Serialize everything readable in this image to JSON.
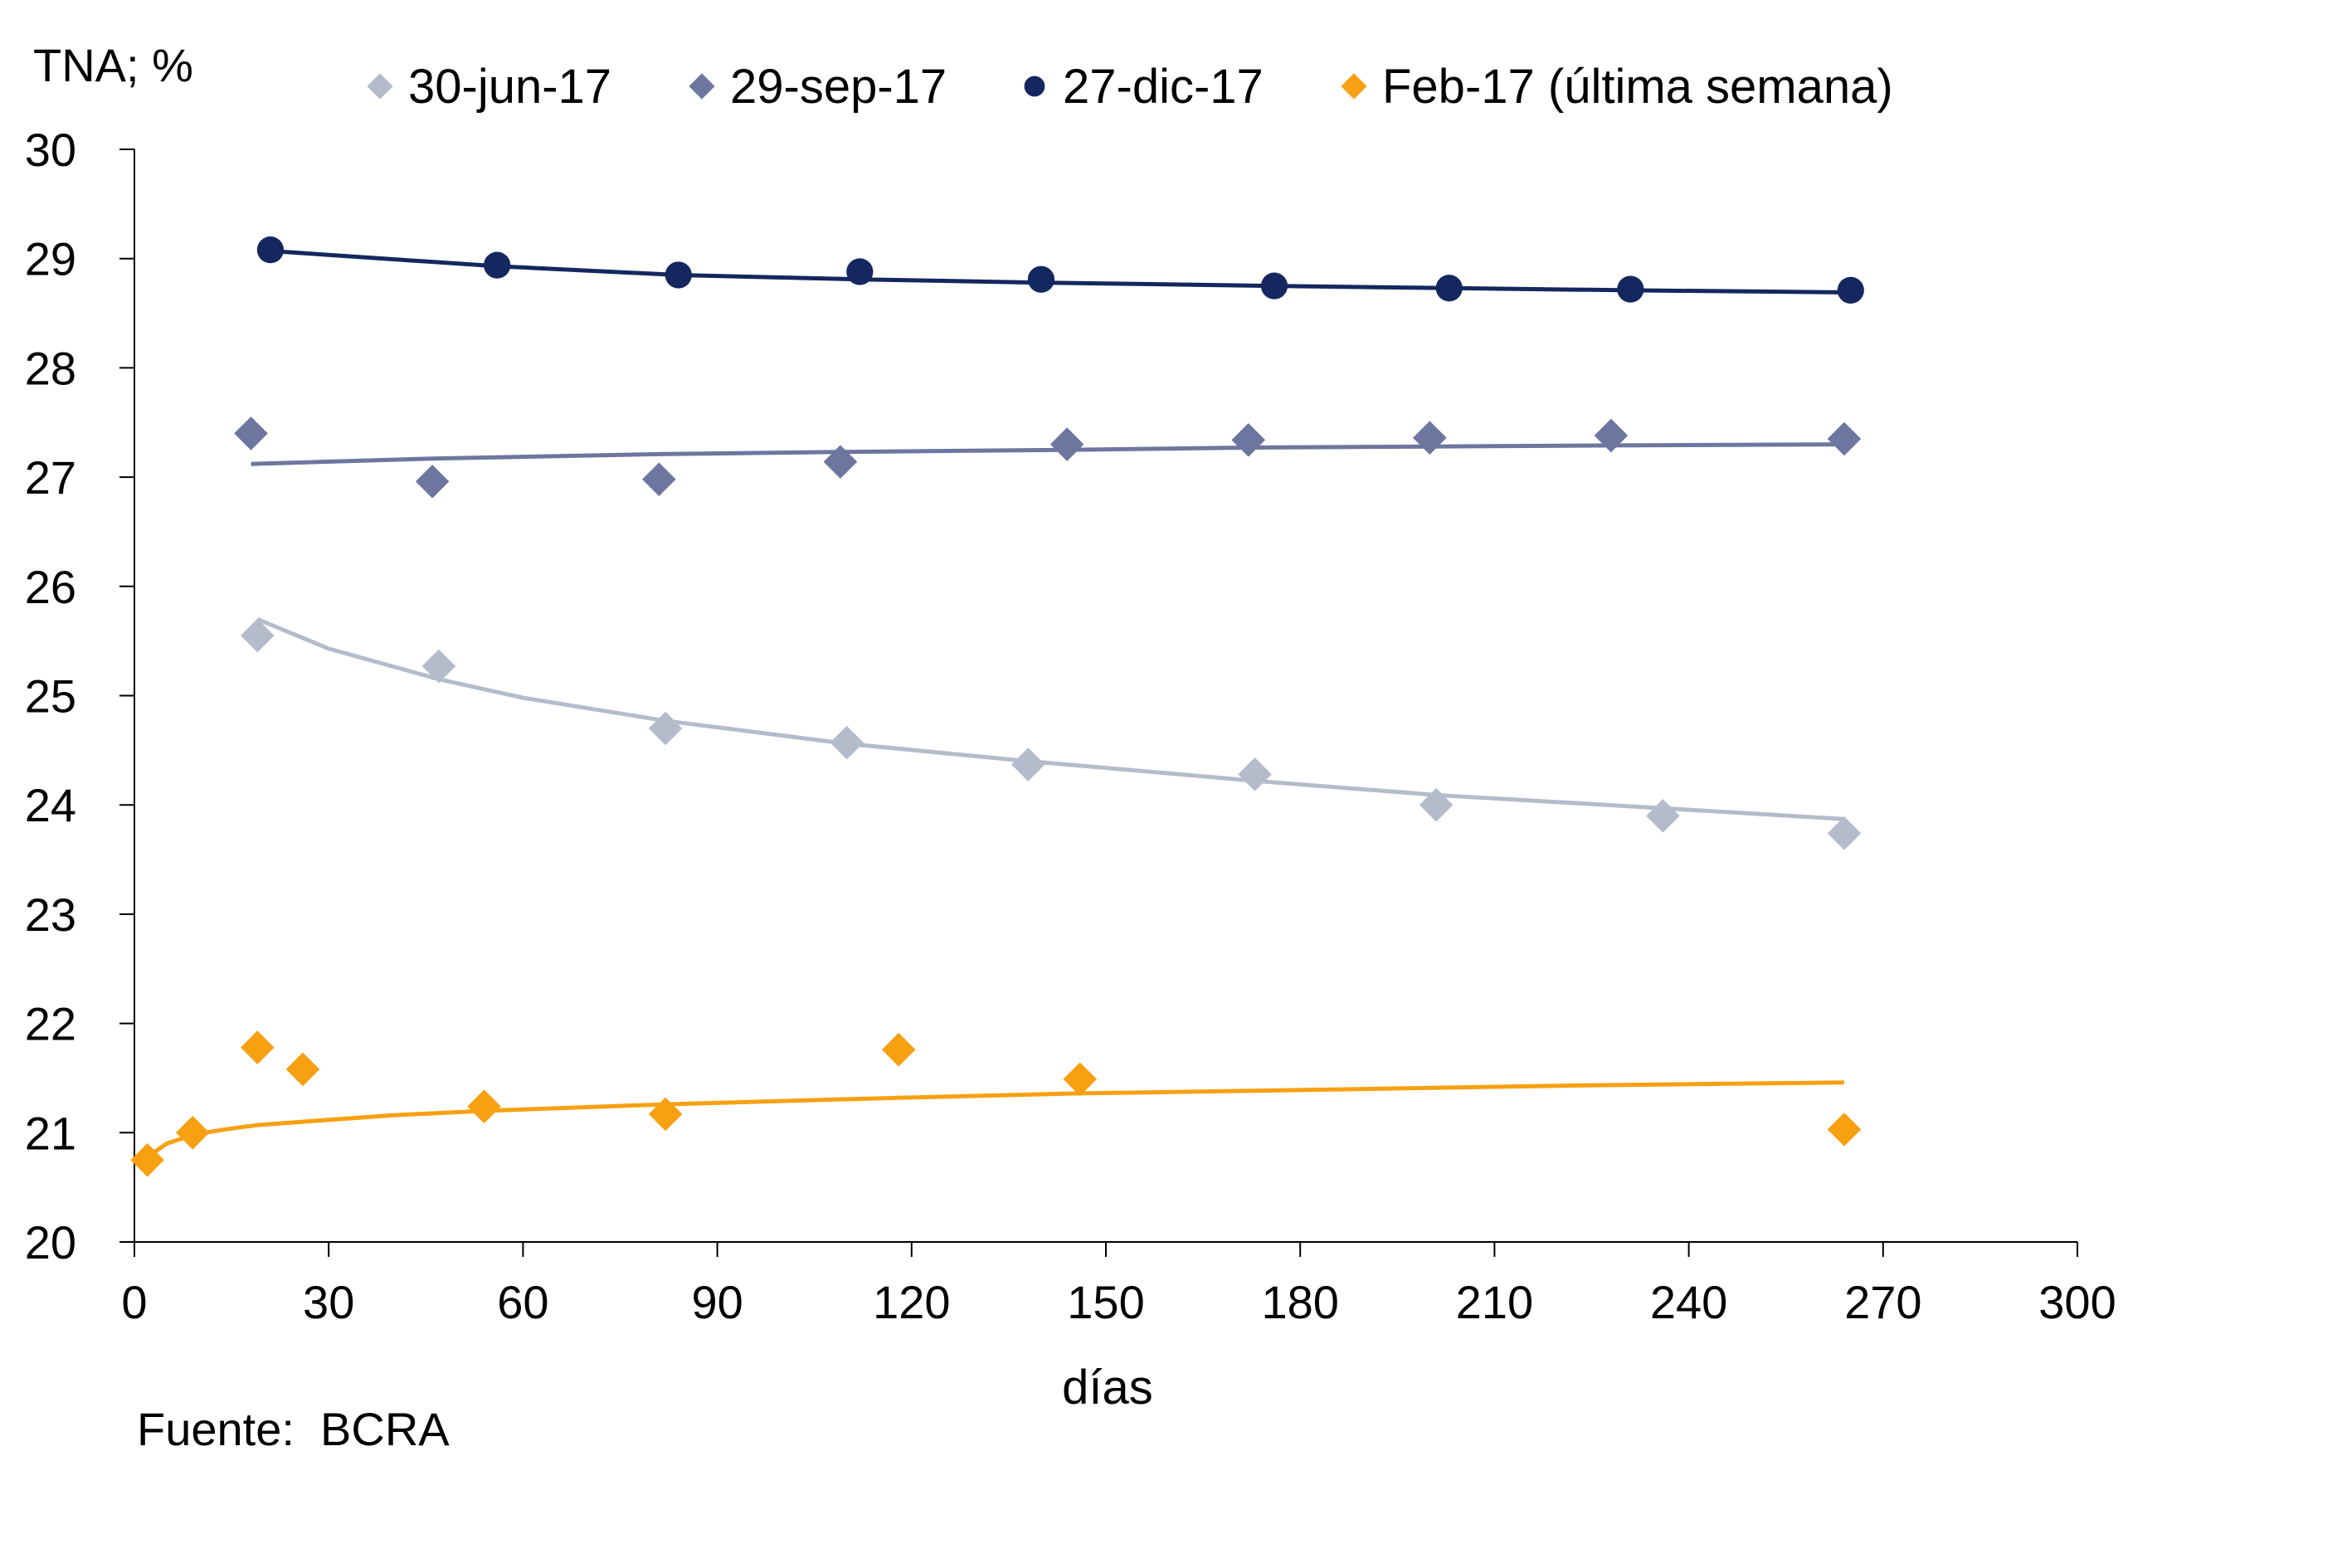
{
  "chart_data": {
    "type": "scatter",
    "y_unit_label": "TNA; %",
    "xlabel": "días",
    "source": "Fuente:  BCRA",
    "xlim": [
      0,
      300
    ],
    "ylim": [
      20,
      30
    ],
    "x_ticks": [
      0,
      30,
      60,
      90,
      120,
      150,
      180,
      210,
      240,
      270,
      300
    ],
    "y_ticks": [
      20,
      21,
      22,
      23,
      24,
      25,
      26,
      27,
      28,
      29,
      30
    ],
    "grid": false,
    "legend_position": "top",
    "series": [
      {
        "name": "30-jun-17",
        "marker": "diamond",
        "color": "#b4bccb",
        "points": [
          [
            19,
            25.55
          ],
          [
            47,
            25.27
          ],
          [
            82,
            24.7
          ],
          [
            110,
            24.57
          ],
          [
            138,
            24.37
          ],
          [
            173,
            24.28
          ],
          [
            201,
            24.0
          ],
          [
            236,
            23.9
          ],
          [
            264,
            23.74
          ]
        ],
        "trend": [
          [
            19,
            25.7
          ],
          [
            30,
            25.43
          ],
          [
            47,
            25.15
          ],
          [
            60,
            24.98
          ],
          [
            82,
            24.77
          ],
          [
            110,
            24.56
          ],
          [
            138,
            24.4
          ],
          [
            173,
            24.22
          ],
          [
            201,
            24.09
          ],
          [
            236,
            23.97
          ],
          [
            264,
            23.87
          ]
        ]
      },
      {
        "name": "29-sep-17",
        "marker": "diamond",
        "color": "#6d769f",
        "points": [
          [
            18,
            27.4
          ],
          [
            46,
            26.96
          ],
          [
            81,
            26.98
          ],
          [
            109,
            27.14
          ],
          [
            144,
            27.3
          ],
          [
            172,
            27.34
          ],
          [
            200,
            27.36
          ],
          [
            228,
            27.38
          ],
          [
            264,
            27.35
          ]
        ],
        "trend": [
          [
            18,
            27.12
          ],
          [
            46,
            27.17
          ],
          [
            81,
            27.21
          ],
          [
            109,
            27.23
          ],
          [
            144,
            27.25
          ],
          [
            172,
            27.27
          ],
          [
            200,
            27.28
          ],
          [
            228,
            27.29
          ],
          [
            264,
            27.3
          ]
        ]
      },
      {
        "name": "27-dic-17",
        "marker": "circle",
        "color": "#14275f",
        "points": [
          [
            21,
            29.08
          ],
          [
            56,
            28.94
          ],
          [
            84,
            28.85
          ],
          [
            112,
            28.88
          ],
          [
            140,
            28.81
          ],
          [
            176,
            28.75
          ],
          [
            203,
            28.73
          ],
          [
            231,
            28.72
          ],
          [
            265,
            28.71
          ]
        ],
        "trend": [
          [
            21,
            29.07
          ],
          [
            56,
            28.93
          ],
          [
            84,
            28.85
          ],
          [
            112,
            28.81
          ],
          [
            140,
            28.78
          ],
          [
            176,
            28.75
          ],
          [
            203,
            28.73
          ],
          [
            231,
            28.71
          ],
          [
            265,
            28.69
          ]
        ]
      },
      {
        "name": "Feb-17 (última semana)",
        "marker": "diamond",
        "color": "#f7a012",
        "points": [
          [
            2,
            20.75
          ],
          [
            9,
            21.0
          ],
          [
            19,
            21.78
          ],
          [
            26,
            21.58
          ],
          [
            54,
            21.24
          ],
          [
            82,
            21.17
          ],
          [
            118,
            21.76
          ],
          [
            146,
            21.49
          ],
          [
            264,
            21.03
          ]
        ],
        "trend": [
          [
            2,
            20.78
          ],
          [
            5,
            20.9
          ],
          [
            9,
            20.98
          ],
          [
            14,
            21.03
          ],
          [
            19,
            21.07
          ],
          [
            26,
            21.1
          ],
          [
            40,
            21.16
          ],
          [
            54,
            21.2
          ],
          [
            82,
            21.26
          ],
          [
            118,
            21.32
          ],
          [
            146,
            21.36
          ],
          [
            180,
            21.39
          ],
          [
            220,
            21.43
          ],
          [
            264,
            21.46
          ]
        ]
      }
    ]
  }
}
